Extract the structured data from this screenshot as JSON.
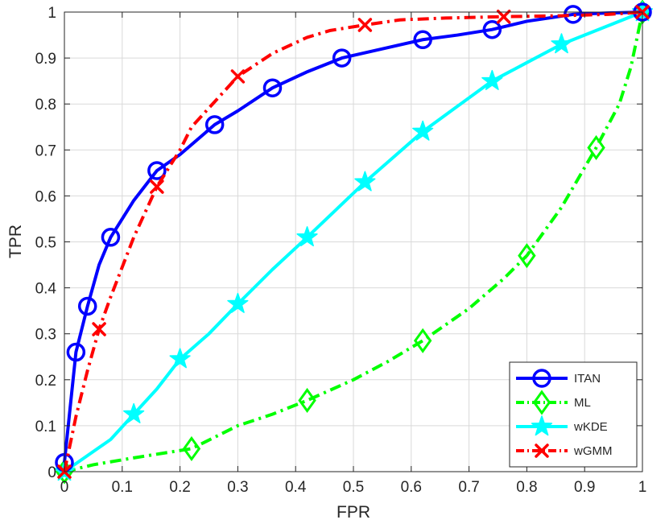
{
  "chart_data": {
    "type": "line",
    "title": "",
    "xlabel": "FPR",
    "ylabel": "TPR",
    "xlim": [
      0,
      1
    ],
    "ylim": [
      0,
      1
    ],
    "grid": true,
    "legend_position": "bottom-right",
    "x_ticks": [
      "0",
      "0.1",
      "0.2",
      "0.3",
      "0.4",
      "0.5",
      "0.6",
      "0.7",
      "0.8",
      "0.9",
      "1"
    ],
    "y_ticks": [
      "0",
      "0.1",
      "0.2",
      "0.3",
      "0.4",
      "0.5",
      "0.6",
      "0.7",
      "0.8",
      "0.9",
      "1"
    ],
    "series": [
      {
        "name": "ITAN",
        "color": "#0000ff",
        "line_style": "solid",
        "marker": "circle",
        "curve": [
          [
            0,
            0.02
          ],
          [
            0.02,
            0.26
          ],
          [
            0.04,
            0.36
          ],
          [
            0.06,
            0.45
          ],
          [
            0.08,
            0.51
          ],
          [
            0.12,
            0.59
          ],
          [
            0.16,
            0.655
          ],
          [
            0.2,
            0.69
          ],
          [
            0.26,
            0.755
          ],
          [
            0.3,
            0.785
          ],
          [
            0.36,
            0.835
          ],
          [
            0.42,
            0.87
          ],
          [
            0.48,
            0.9
          ],
          [
            0.55,
            0.92
          ],
          [
            0.62,
            0.94
          ],
          [
            0.68,
            0.95
          ],
          [
            0.74,
            0.962
          ],
          [
            0.8,
            0.98
          ],
          [
            0.88,
            0.995
          ],
          [
            0.94,
            0.998
          ],
          [
            1,
            1
          ]
        ],
        "markers": [
          [
            0,
            0.02
          ],
          [
            0.02,
            0.26
          ],
          [
            0.04,
            0.36
          ],
          [
            0.08,
            0.51
          ],
          [
            0.16,
            0.655
          ],
          [
            0.26,
            0.755
          ],
          [
            0.36,
            0.835
          ],
          [
            0.48,
            0.9
          ],
          [
            0.62,
            0.94
          ],
          [
            0.74,
            0.962
          ],
          [
            0.88,
            0.995
          ],
          [
            1,
            1
          ]
        ]
      },
      {
        "name": "ML",
        "color": "#00ff00",
        "line_style": "dashdot",
        "marker": "diamond",
        "curve": [
          [
            0,
            0
          ],
          [
            0.05,
            0.015
          ],
          [
            0.12,
            0.03
          ],
          [
            0.22,
            0.05
          ],
          [
            0.3,
            0.1
          ],
          [
            0.36,
            0.125
          ],
          [
            0.42,
            0.155
          ],
          [
            0.5,
            0.2
          ],
          [
            0.56,
            0.24
          ],
          [
            0.62,
            0.285
          ],
          [
            0.7,
            0.355
          ],
          [
            0.76,
            0.42
          ],
          [
            0.8,
            0.47
          ],
          [
            0.86,
            0.575
          ],
          [
            0.92,
            0.705
          ],
          [
            0.96,
            0.8
          ],
          [
            0.98,
            0.88
          ],
          [
            1,
            1
          ]
        ],
        "markers": [
          [
            0,
            0
          ],
          [
            0.22,
            0.05
          ],
          [
            0.42,
            0.155
          ],
          [
            0.62,
            0.285
          ],
          [
            0.8,
            0.47
          ],
          [
            0.92,
            0.705
          ],
          [
            1,
            1
          ]
        ]
      },
      {
        "name": "wKDE",
        "color": "#00ffff",
        "line_style": "solid",
        "marker": "star",
        "curve": [
          [
            0,
            0
          ],
          [
            0.04,
            0.035
          ],
          [
            0.08,
            0.07
          ],
          [
            0.12,
            0.125
          ],
          [
            0.16,
            0.18
          ],
          [
            0.2,
            0.245
          ],
          [
            0.25,
            0.3
          ],
          [
            0.3,
            0.365
          ],
          [
            0.36,
            0.44
          ],
          [
            0.42,
            0.51
          ],
          [
            0.47,
            0.57
          ],
          [
            0.52,
            0.63
          ],
          [
            0.57,
            0.685
          ],
          [
            0.62,
            0.74
          ],
          [
            0.68,
            0.795
          ],
          [
            0.74,
            0.85
          ],
          [
            0.8,
            0.89
          ],
          [
            0.86,
            0.93
          ],
          [
            0.93,
            0.965
          ],
          [
            1,
            1
          ]
        ],
        "markers": [
          [
            0,
            0
          ],
          [
            0.12,
            0.125
          ],
          [
            0.2,
            0.245
          ],
          [
            0.3,
            0.365
          ],
          [
            0.42,
            0.51
          ],
          [
            0.52,
            0.63
          ],
          [
            0.62,
            0.74
          ],
          [
            0.74,
            0.85
          ],
          [
            0.86,
            0.93
          ],
          [
            1,
            1
          ]
        ]
      },
      {
        "name": "wGMM",
        "color": "#ff0000",
        "line_style": "dashdot",
        "marker": "x",
        "curve": [
          [
            0,
            0
          ],
          [
            0.02,
            0.12
          ],
          [
            0.04,
            0.22
          ],
          [
            0.06,
            0.31
          ],
          [
            0.08,
            0.38
          ],
          [
            0.12,
            0.51
          ],
          [
            0.16,
            0.62
          ],
          [
            0.2,
            0.7
          ],
          [
            0.22,
            0.75
          ],
          [
            0.26,
            0.805
          ],
          [
            0.3,
            0.86
          ],
          [
            0.36,
            0.91
          ],
          [
            0.42,
            0.945
          ],
          [
            0.46,
            0.96
          ],
          [
            0.52,
            0.972
          ],
          [
            0.58,
            0.983
          ],
          [
            0.66,
            0.987
          ],
          [
            0.76,
            0.99
          ],
          [
            0.86,
            0.992
          ],
          [
            0.94,
            0.995
          ],
          [
            1,
            1
          ]
        ],
        "markers": [
          [
            0,
            0
          ],
          [
            0.06,
            0.31
          ],
          [
            0.16,
            0.62
          ],
          [
            0.3,
            0.86
          ],
          [
            0.52,
            0.972
          ],
          [
            0.76,
            0.99
          ],
          [
            1,
            1
          ]
        ]
      }
    ]
  }
}
